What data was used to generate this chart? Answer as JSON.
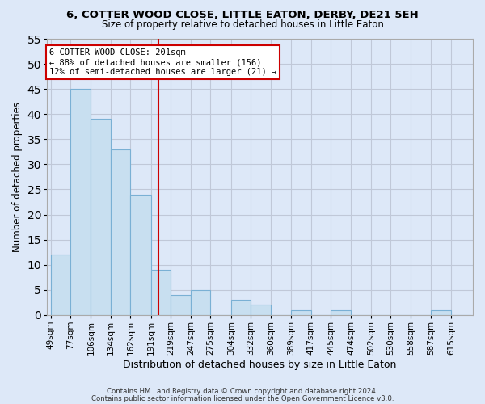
{
  "title1": "6, COTTER WOOD CLOSE, LITTLE EATON, DERBY, DE21 5EH",
  "title2": "Size of property relative to detached houses in Little Eaton",
  "xlabel": "Distribution of detached houses by size in Little Eaton",
  "ylabel": "Number of detached properties",
  "bin_labels": [
    "49sqm",
    "77sqm",
    "106sqm",
    "134sqm",
    "162sqm",
    "191sqm",
    "219sqm",
    "247sqm",
    "275sqm",
    "304sqm",
    "332sqm",
    "360sqm",
    "389sqm",
    "417sqm",
    "445sqm",
    "474sqm",
    "502sqm",
    "530sqm",
    "558sqm",
    "587sqm",
    "615sqm"
  ],
  "bin_edges": [
    49,
    77,
    106,
    134,
    162,
    191,
    219,
    247,
    275,
    304,
    332,
    360,
    389,
    417,
    445,
    474,
    502,
    530,
    558,
    587,
    615
  ],
  "bar_heights": [
    12,
    45,
    39,
    33,
    24,
    9,
    4,
    5,
    0,
    3,
    2,
    0,
    1,
    0,
    1,
    0,
    0,
    0,
    0,
    1,
    0
  ],
  "bar_color": "#c8dff0",
  "bar_edge_color": "#7ab0d4",
  "grid_color": "#c0c8d8",
  "ref_line_x": 201,
  "ref_line_color": "#cc0000",
  "annotation_title": "6 COTTER WOOD CLOSE: 201sqm",
  "annotation_line1": "← 88% of detached houses are smaller (156)",
  "annotation_line2": "12% of semi-detached houses are larger (21) →",
  "annotation_box_color": "#ffffff",
  "annotation_box_edge": "#cc0000",
  "ylim": [
    0,
    55
  ],
  "yticks": [
    0,
    5,
    10,
    15,
    20,
    25,
    30,
    35,
    40,
    45,
    50,
    55
  ],
  "footer1": "Contains HM Land Registry data © Crown copyright and database right 2024.",
  "footer2": "Contains public sector information licensed under the Open Government Licence v3.0.",
  "background_color": "#dde8f8",
  "plot_bg_color": "#dde8f8"
}
